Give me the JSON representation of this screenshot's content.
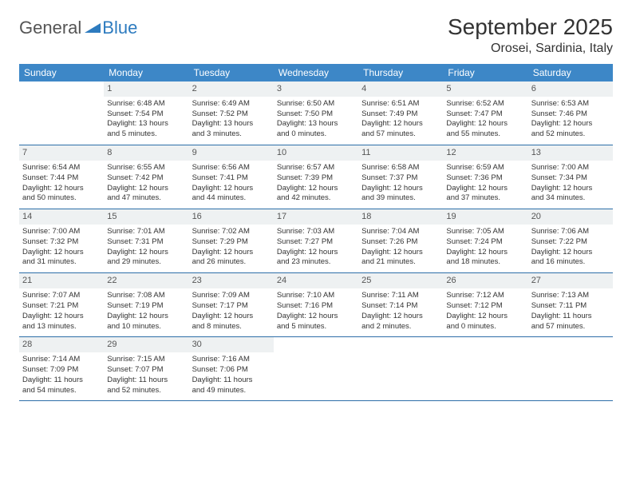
{
  "logo": {
    "general": "General",
    "blue": "Blue"
  },
  "title": "September 2025",
  "subtitle": "Orosei, Sardinia, Italy",
  "colors": {
    "header_bg": "#3d87c7",
    "header_text": "#ffffff",
    "daynum_bg": "#eef1f2",
    "week_border": "#2d6ea8",
    "body_text": "#333333",
    "logo_gray": "#555555",
    "logo_blue": "#2d7bbf",
    "background": "#ffffff"
  },
  "typography": {
    "title_fontsize": 28,
    "subtitle_fontsize": 16,
    "weekday_fontsize": 12,
    "daynum_fontsize": 11,
    "cell_fontsize": 9.5
  },
  "weekdays": [
    "Sunday",
    "Monday",
    "Tuesday",
    "Wednesday",
    "Thursday",
    "Friday",
    "Saturday"
  ],
  "weeks": [
    [
      {
        "num": "",
        "sunrise": "",
        "sunset": "",
        "daylight1": "",
        "daylight2": "",
        "empty": true
      },
      {
        "num": "1",
        "sunrise": "Sunrise: 6:48 AM",
        "sunset": "Sunset: 7:54 PM",
        "daylight1": "Daylight: 13 hours",
        "daylight2": "and 5 minutes."
      },
      {
        "num": "2",
        "sunrise": "Sunrise: 6:49 AM",
        "sunset": "Sunset: 7:52 PM",
        "daylight1": "Daylight: 13 hours",
        "daylight2": "and 3 minutes."
      },
      {
        "num": "3",
        "sunrise": "Sunrise: 6:50 AM",
        "sunset": "Sunset: 7:50 PM",
        "daylight1": "Daylight: 13 hours",
        "daylight2": "and 0 minutes."
      },
      {
        "num": "4",
        "sunrise": "Sunrise: 6:51 AM",
        "sunset": "Sunset: 7:49 PM",
        "daylight1": "Daylight: 12 hours",
        "daylight2": "and 57 minutes."
      },
      {
        "num": "5",
        "sunrise": "Sunrise: 6:52 AM",
        "sunset": "Sunset: 7:47 PM",
        "daylight1": "Daylight: 12 hours",
        "daylight2": "and 55 minutes."
      },
      {
        "num": "6",
        "sunrise": "Sunrise: 6:53 AM",
        "sunset": "Sunset: 7:46 PM",
        "daylight1": "Daylight: 12 hours",
        "daylight2": "and 52 minutes."
      }
    ],
    [
      {
        "num": "7",
        "sunrise": "Sunrise: 6:54 AM",
        "sunset": "Sunset: 7:44 PM",
        "daylight1": "Daylight: 12 hours",
        "daylight2": "and 50 minutes."
      },
      {
        "num": "8",
        "sunrise": "Sunrise: 6:55 AM",
        "sunset": "Sunset: 7:42 PM",
        "daylight1": "Daylight: 12 hours",
        "daylight2": "and 47 minutes."
      },
      {
        "num": "9",
        "sunrise": "Sunrise: 6:56 AM",
        "sunset": "Sunset: 7:41 PM",
        "daylight1": "Daylight: 12 hours",
        "daylight2": "and 44 minutes."
      },
      {
        "num": "10",
        "sunrise": "Sunrise: 6:57 AM",
        "sunset": "Sunset: 7:39 PM",
        "daylight1": "Daylight: 12 hours",
        "daylight2": "and 42 minutes."
      },
      {
        "num": "11",
        "sunrise": "Sunrise: 6:58 AM",
        "sunset": "Sunset: 7:37 PM",
        "daylight1": "Daylight: 12 hours",
        "daylight2": "and 39 minutes."
      },
      {
        "num": "12",
        "sunrise": "Sunrise: 6:59 AM",
        "sunset": "Sunset: 7:36 PM",
        "daylight1": "Daylight: 12 hours",
        "daylight2": "and 37 minutes."
      },
      {
        "num": "13",
        "sunrise": "Sunrise: 7:00 AM",
        "sunset": "Sunset: 7:34 PM",
        "daylight1": "Daylight: 12 hours",
        "daylight2": "and 34 minutes."
      }
    ],
    [
      {
        "num": "14",
        "sunrise": "Sunrise: 7:00 AM",
        "sunset": "Sunset: 7:32 PM",
        "daylight1": "Daylight: 12 hours",
        "daylight2": "and 31 minutes."
      },
      {
        "num": "15",
        "sunrise": "Sunrise: 7:01 AM",
        "sunset": "Sunset: 7:31 PM",
        "daylight1": "Daylight: 12 hours",
        "daylight2": "and 29 minutes."
      },
      {
        "num": "16",
        "sunrise": "Sunrise: 7:02 AM",
        "sunset": "Sunset: 7:29 PM",
        "daylight1": "Daylight: 12 hours",
        "daylight2": "and 26 minutes."
      },
      {
        "num": "17",
        "sunrise": "Sunrise: 7:03 AM",
        "sunset": "Sunset: 7:27 PM",
        "daylight1": "Daylight: 12 hours",
        "daylight2": "and 23 minutes."
      },
      {
        "num": "18",
        "sunrise": "Sunrise: 7:04 AM",
        "sunset": "Sunset: 7:26 PM",
        "daylight1": "Daylight: 12 hours",
        "daylight2": "and 21 minutes."
      },
      {
        "num": "19",
        "sunrise": "Sunrise: 7:05 AM",
        "sunset": "Sunset: 7:24 PM",
        "daylight1": "Daylight: 12 hours",
        "daylight2": "and 18 minutes."
      },
      {
        "num": "20",
        "sunrise": "Sunrise: 7:06 AM",
        "sunset": "Sunset: 7:22 PM",
        "daylight1": "Daylight: 12 hours",
        "daylight2": "and 16 minutes."
      }
    ],
    [
      {
        "num": "21",
        "sunrise": "Sunrise: 7:07 AM",
        "sunset": "Sunset: 7:21 PM",
        "daylight1": "Daylight: 12 hours",
        "daylight2": "and 13 minutes."
      },
      {
        "num": "22",
        "sunrise": "Sunrise: 7:08 AM",
        "sunset": "Sunset: 7:19 PM",
        "daylight1": "Daylight: 12 hours",
        "daylight2": "and 10 minutes."
      },
      {
        "num": "23",
        "sunrise": "Sunrise: 7:09 AM",
        "sunset": "Sunset: 7:17 PM",
        "daylight1": "Daylight: 12 hours",
        "daylight2": "and 8 minutes."
      },
      {
        "num": "24",
        "sunrise": "Sunrise: 7:10 AM",
        "sunset": "Sunset: 7:16 PM",
        "daylight1": "Daylight: 12 hours",
        "daylight2": "and 5 minutes."
      },
      {
        "num": "25",
        "sunrise": "Sunrise: 7:11 AM",
        "sunset": "Sunset: 7:14 PM",
        "daylight1": "Daylight: 12 hours",
        "daylight2": "and 2 minutes."
      },
      {
        "num": "26",
        "sunrise": "Sunrise: 7:12 AM",
        "sunset": "Sunset: 7:12 PM",
        "daylight1": "Daylight: 12 hours",
        "daylight2": "and 0 minutes."
      },
      {
        "num": "27",
        "sunrise": "Sunrise: 7:13 AM",
        "sunset": "Sunset: 7:11 PM",
        "daylight1": "Daylight: 11 hours",
        "daylight2": "and 57 minutes."
      }
    ],
    [
      {
        "num": "28",
        "sunrise": "Sunrise: 7:14 AM",
        "sunset": "Sunset: 7:09 PM",
        "daylight1": "Daylight: 11 hours",
        "daylight2": "and 54 minutes."
      },
      {
        "num": "29",
        "sunrise": "Sunrise: 7:15 AM",
        "sunset": "Sunset: 7:07 PM",
        "daylight1": "Daylight: 11 hours",
        "daylight2": "and 52 minutes."
      },
      {
        "num": "30",
        "sunrise": "Sunrise: 7:16 AM",
        "sunset": "Sunset: 7:06 PM",
        "daylight1": "Daylight: 11 hours",
        "daylight2": "and 49 minutes."
      },
      {
        "num": "",
        "sunrise": "",
        "sunset": "",
        "daylight1": "",
        "daylight2": "",
        "empty": true
      },
      {
        "num": "",
        "sunrise": "",
        "sunset": "",
        "daylight1": "",
        "daylight2": "",
        "empty": true
      },
      {
        "num": "",
        "sunrise": "",
        "sunset": "",
        "daylight1": "",
        "daylight2": "",
        "empty": true
      },
      {
        "num": "",
        "sunrise": "",
        "sunset": "",
        "daylight1": "",
        "daylight2": "",
        "empty": true
      }
    ]
  ]
}
